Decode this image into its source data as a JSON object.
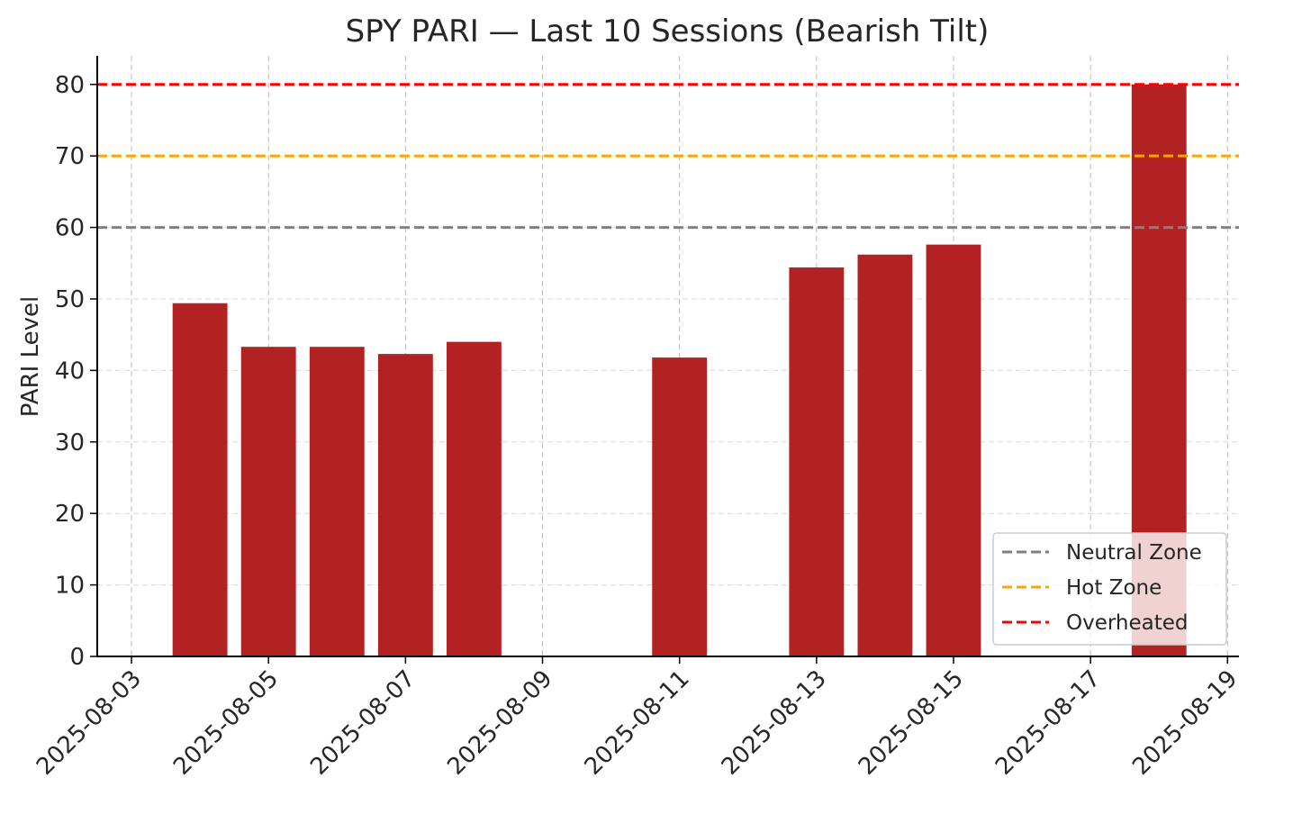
{
  "chart_data": {
    "type": "bar",
    "title": "SPY PARI — Last 10 Sessions (Bearish Tilt)",
    "xlabel": "",
    "ylabel": "PARI Level",
    "ylim": [
      0,
      84
    ],
    "yticks": [
      0,
      10,
      20,
      30,
      40,
      50,
      60,
      70,
      80
    ],
    "x_tick_labels": [
      "2025-08-03",
      "2025-08-05",
      "2025-08-07",
      "2025-08-09",
      "2025-08-11",
      "2025-08-13",
      "2025-08-15",
      "2025-08-17",
      "2025-08-19"
    ],
    "categories": [
      "2025-08-04",
      "2025-08-05",
      "2025-08-06",
      "2025-08-07",
      "2025-08-08",
      "2025-08-11",
      "2025-08-13",
      "2025-08-14",
      "2025-08-15",
      "2025-08-18"
    ],
    "values": [
      49.4,
      43.3,
      43.3,
      42.3,
      44.0,
      41.8,
      54.4,
      56.2,
      57.6,
      80.0
    ],
    "bar_color": "#b22222",
    "grid": true,
    "reference_lines": [
      {
        "name": "Neutral Zone",
        "value": 60,
        "color": "#808080"
      },
      {
        "name": "Hot Zone",
        "value": 70,
        "color": "#ffa500"
      },
      {
        "name": "Overheated",
        "value": 80,
        "color": "#ff0000"
      }
    ],
    "legend_position": "bottom-right"
  }
}
